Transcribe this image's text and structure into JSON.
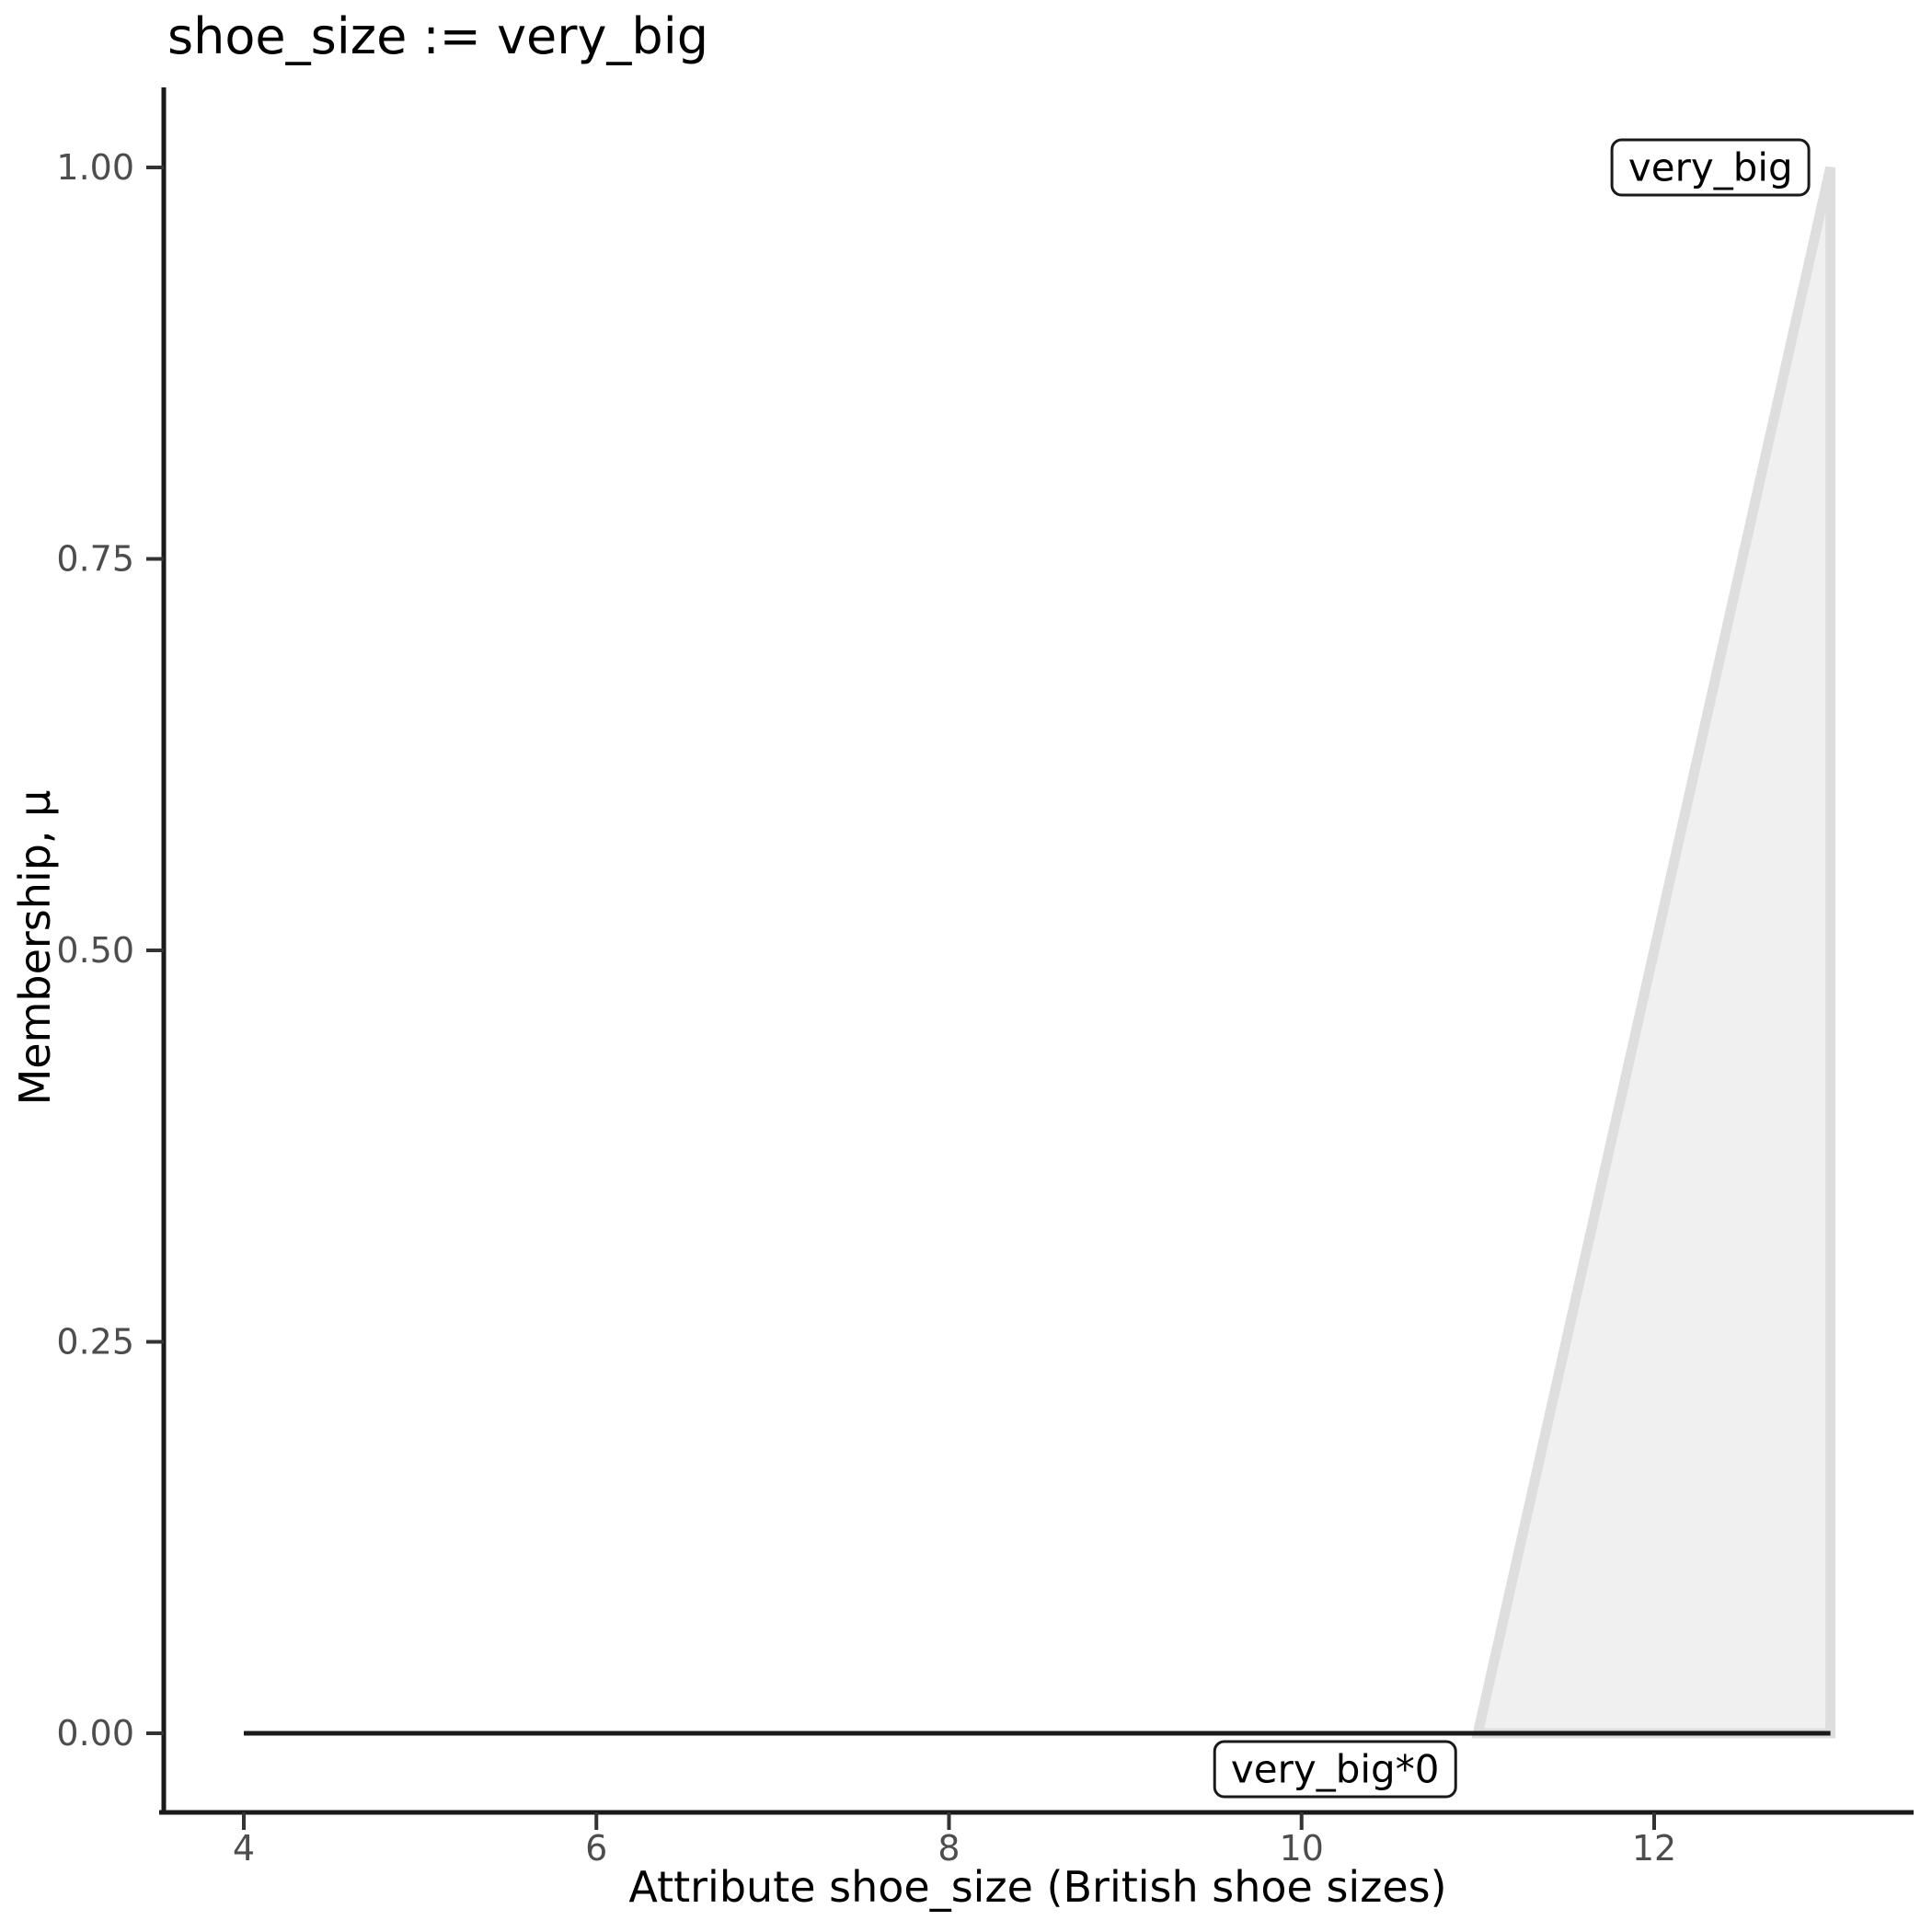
{
  "chart_data": {
    "type": "area",
    "title": "shoe_size := very_big",
    "xlabel": "Attribute shoe_size (British shoe sizes)",
    "ylabel": "Membership, μ",
    "xlim": [
      3.55,
      13.5
    ],
    "ylim": [
      0,
      1
    ],
    "grid": false,
    "legend_position": "none",
    "x_ticks": [
      4,
      6,
      8,
      10,
      12
    ],
    "x_tick_labels": [
      "4",
      "6",
      "8",
      "10",
      "12"
    ],
    "y_ticks": [
      0,
      0.25,
      0.5,
      0.75,
      1
    ],
    "y_tick_labels": [
      "0.00",
      "0.25",
      "0.50",
      "0.75",
      "1.00"
    ],
    "series": [
      {
        "name": "very_big",
        "type": "area",
        "points": [
          [
            11,
            0
          ],
          [
            13,
            1
          ],
          [
            13,
            0
          ]
        ],
        "fill": "#f0f0f0",
        "stroke": "#dedede",
        "stroke_width": 11
      },
      {
        "name": "very_big*0",
        "type": "line",
        "points": [
          [
            4,
            0
          ],
          [
            13,
            0
          ]
        ],
        "stroke": "#1a1a1a",
        "stroke_width": 5
      }
    ],
    "annotations": [
      {
        "label": "very_big",
        "x": 12.32,
        "y": 1.0
      },
      {
        "label": "very_big*0",
        "x": 10.19,
        "y": -0.023
      }
    ],
    "colors": {
      "axis": "#1a1a1a",
      "tick_mark": "#333333",
      "tick_label": "#4d4d4d",
      "area_fill": "#f0f0f0",
      "area_stroke": "#dedede",
      "zero_line": "#1a1a1a"
    }
  }
}
